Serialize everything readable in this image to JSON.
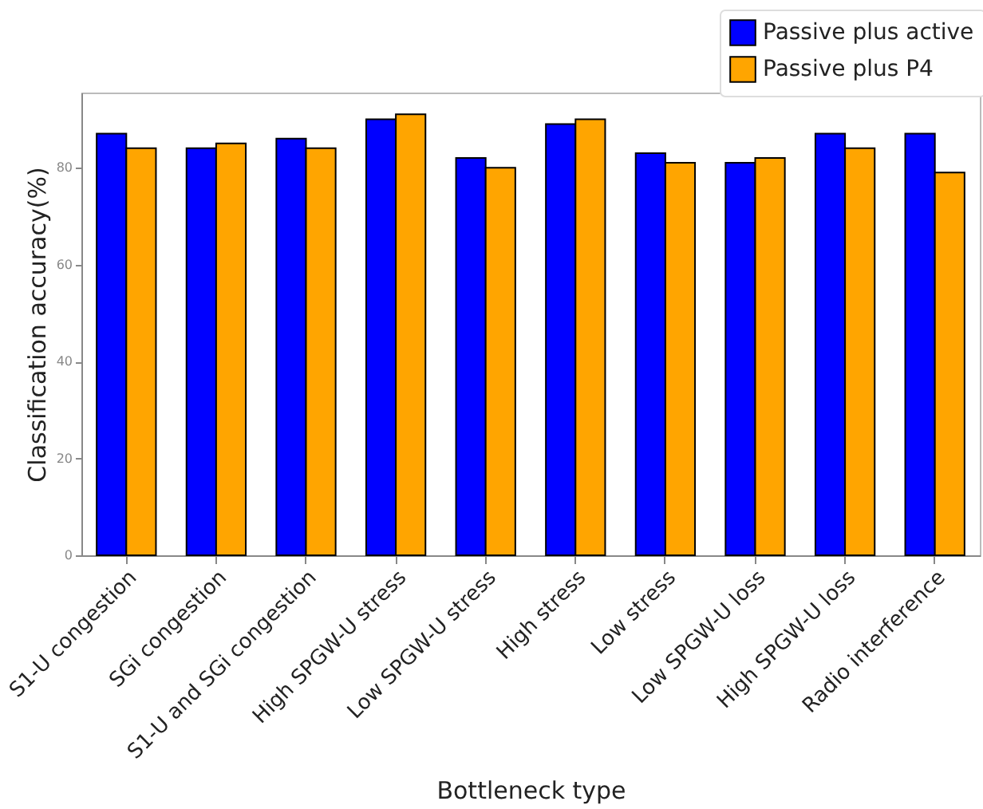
{
  "chart_data": {
    "type": "bar",
    "xlabel": "Bottleneck type",
    "ylabel": "Classification accuracy(%)",
    "categories": [
      "S1-U congestion",
      "SGi congestion",
      "S1-U and SGi congestion",
      "High SPGW-U stress",
      "Low SPGW-U stress",
      "High stress",
      "Low stress",
      "Low SPGW-U loss",
      "High SPGW-U loss",
      "Radio interference"
    ],
    "series": [
      {
        "name": "Passive plus active",
        "color": "#0000ff",
        "values": [
          87,
          84,
          86,
          90,
          82,
          89,
          83,
          81,
          87,
          87
        ]
      },
      {
        "name": "Passive plus P4",
        "color": "#ffa500",
        "values": [
          84,
          85,
          84,
          91,
          80,
          90,
          81,
          82,
          84,
          79
        ]
      }
    ],
    "ylim": [
      0,
      95.5
    ],
    "yticks": [
      0,
      20,
      40,
      60,
      80
    ],
    "grid": false,
    "legend": "top right"
  }
}
